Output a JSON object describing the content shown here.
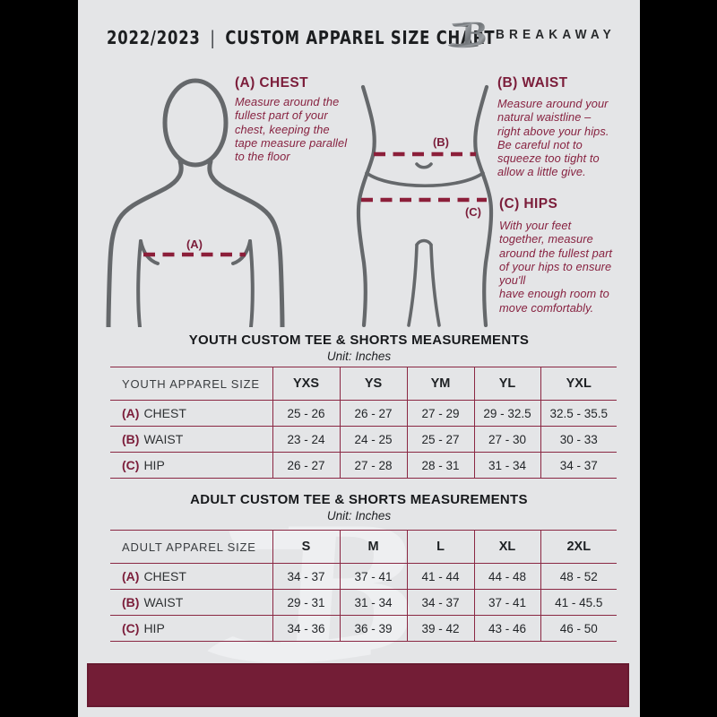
{
  "colors": {
    "canvas": "#000000",
    "document_bg": "#e4e5e7",
    "maroon_heading": "#7b1d3a",
    "maroon_body_text": "#872240",
    "maroon_table_border": "#8a2743",
    "maroon_footer": "#731d36",
    "silhouette_gray": "#65686b",
    "title_text": "#1c1e20"
  },
  "header": {
    "season": "2022/2023",
    "divider": "|",
    "title": "CUSTOM APPAREL SIZE CHART",
    "brand": "BREAKAWAY",
    "logo_letter": "B"
  },
  "guide": {
    "chest": {
      "heading": "(A) CHEST",
      "marker": "(A)",
      "body": "Measure around the\nfullest part of your\nchest, keeping the\ntape measure parallel\nto the floor"
    },
    "waist": {
      "heading": "(B) WAIST",
      "marker": "(B)",
      "body": "Measure around your\nnatural waistline –\nright above your hips.\nBe careful not to\nsqueeze too tight to\nallow a little give."
    },
    "hips": {
      "heading": "(C) HIPS",
      "marker": "(C)",
      "body": "With your feet\ntogether, measure\naround the fullest part\nof your hips to ensure\nyou'll\nhave enough room to\nmove comfortably."
    }
  },
  "tables": [
    {
      "id": "youth",
      "title": "YOUTH CUSTOM TEE & SHORTS MEASUREMENTS",
      "unit": "Unit: Inches",
      "size_label": "YOUTH APPAREL SIZE",
      "sizes": [
        "YXS",
        "YS",
        "YM",
        "YL",
        "YXL"
      ],
      "rows": [
        {
          "prefix": "(A)",
          "label": "CHEST",
          "values": [
            "25 - 26",
            "26 - 27",
            "27 - 29",
            "29 - 32.5",
            "32.5 - 35.5"
          ]
        },
        {
          "prefix": "(B)",
          "label": "WAIST",
          "values": [
            "23 - 24",
            "24 - 25",
            "25 - 27",
            "27 - 30",
            "30 - 33"
          ]
        },
        {
          "prefix": "(C)",
          "label": "HIP",
          "values": [
            "26 - 27",
            "27 - 28",
            "28 - 31",
            "31 - 34",
            "34 - 37"
          ]
        }
      ]
    },
    {
      "id": "adult",
      "title": "ADULT CUSTOM TEE & SHORTS MEASUREMENTS",
      "unit": "Unit: Inches",
      "size_label": "ADULT APPAREL SIZE",
      "sizes": [
        "S",
        "M",
        "L",
        "XL",
        "2XL"
      ],
      "rows": [
        {
          "prefix": "(A)",
          "label": "CHEST",
          "values": [
            "34 - 37",
            "37 - 41",
            "41 - 44",
            "44 - 48",
            "48 - 52"
          ]
        },
        {
          "prefix": "(B)",
          "label": "WAIST",
          "values": [
            "29 - 31",
            "31 - 34",
            "34 - 37",
            "37 - 41",
            "41 - 45.5"
          ]
        },
        {
          "prefix": "(C)",
          "label": "HIP",
          "values": [
            "34 - 36",
            "36 - 39",
            "39 - 42",
            "43 - 46",
            "46 - 50"
          ]
        }
      ]
    }
  ],
  "watermark_letter": "B"
}
